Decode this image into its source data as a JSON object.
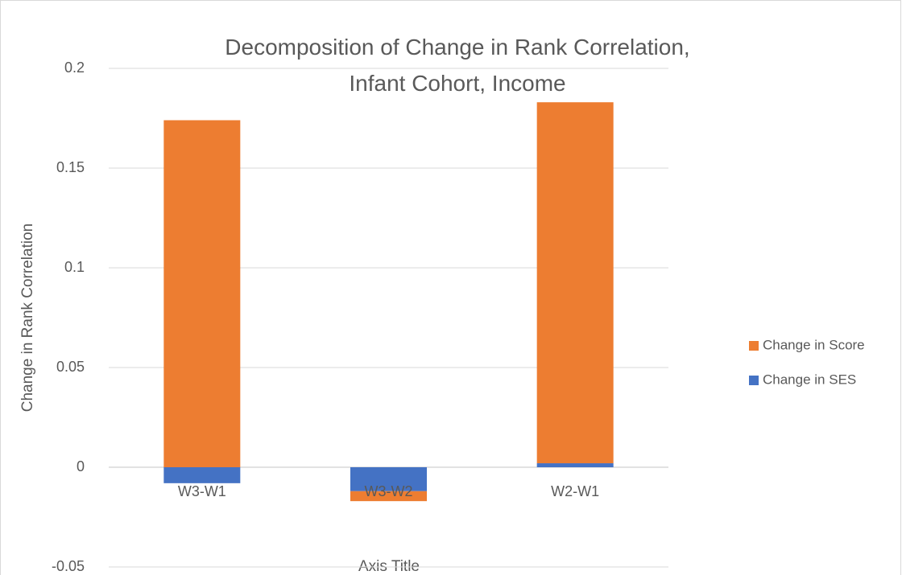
{
  "chart_data": {
    "type": "stacked_bar",
    "title": "Decomposition of Change in Rank Correlation, Infant Cohort, Income",
    "x_axis_label": "Axis Title",
    "y_axis_label": "Change in Rank Correlation",
    "categories": [
      "W3-W1",
      "W3-W2",
      "W2-W1"
    ],
    "series": [
      {
        "name": "Change in SES",
        "color": "#4472c4",
        "values": [
          -0.008,
          -0.012,
          0.002
        ]
      },
      {
        "name": "Change in Score",
        "color": "#ed7d31",
        "values": [
          0.174,
          -0.005,
          0.181
        ]
      }
    ],
    "ylim": [
      -0.05,
      0.2
    ],
    "yticks": [
      -0.05,
      0,
      0.05,
      0.1,
      0.15,
      0.2
    ],
    "grid": true,
    "legend": "right"
  }
}
